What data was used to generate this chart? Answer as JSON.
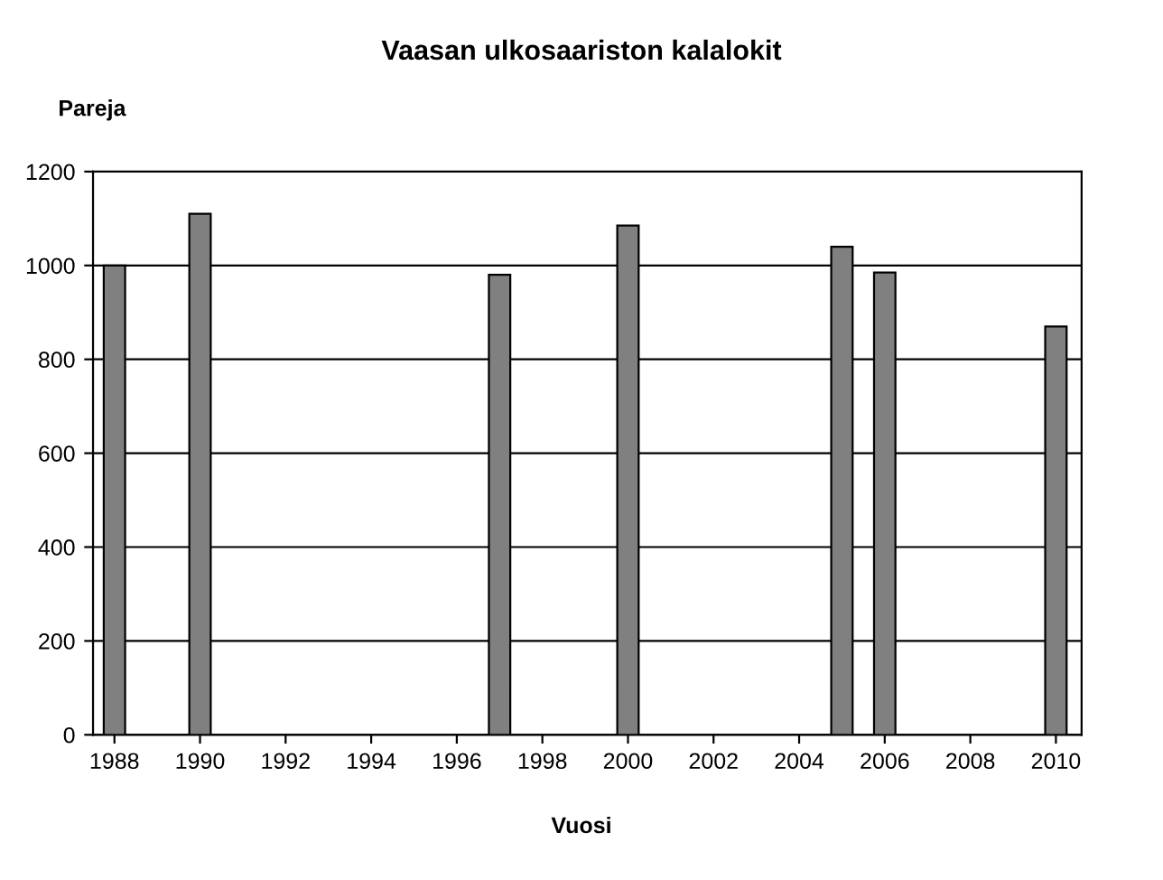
{
  "chart_data": {
    "type": "bar",
    "title": "Vaasan ulkosaariston kalalokit",
    "xlabel": "Vuosi",
    "ylabel": "Pareja",
    "x": [
      1988,
      1990,
      1997,
      2000,
      2005,
      2006,
      2010
    ],
    "values": [
      1000,
      1110,
      980,
      1085,
      1040,
      985,
      870
    ],
    "color": "#808080",
    "xlim": [
      1987.5,
      2010.6
    ],
    "xticks": [
      1988,
      1990,
      1992,
      1994,
      1996,
      1998,
      2000,
      2002,
      2004,
      2006,
      2008,
      2010
    ],
    "ylim": [
      0,
      1200
    ],
    "yticks": [
      0,
      200,
      400,
      600,
      800,
      1000,
      1200
    ],
    "grid": "y"
  }
}
